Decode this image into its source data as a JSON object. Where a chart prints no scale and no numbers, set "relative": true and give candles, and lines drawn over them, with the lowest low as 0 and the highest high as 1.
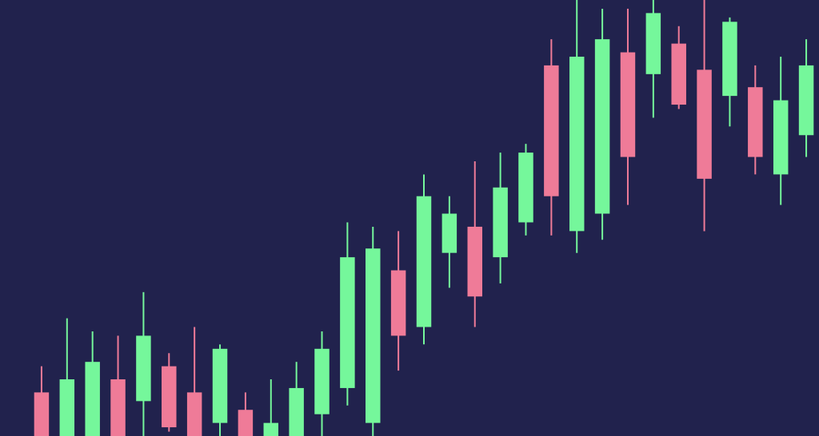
{
  "chart_data": {
    "type": "candlestick",
    "relative": true,
    "categories": [
      null,
      null,
      null,
      null,
      null,
      null,
      null,
      null,
      null,
      null,
      null,
      null,
      null,
      null,
      null,
      null,
      null,
      null,
      null,
      null,
      null,
      null,
      null,
      null,
      null,
      null,
      null,
      null,
      null,
      null,
      null
    ],
    "ohlc": [
      [
        0.1,
        0.16,
        0,
        0
      ],
      [
        0,
        0.27,
        0,
        0.13
      ],
      [
        0,
        0.24,
        0,
        0.17
      ],
      [
        0.13,
        0.23,
        0,
        0
      ],
      [
        0.08,
        0.33,
        0,
        0.23
      ],
      [
        0.16,
        0.19,
        0.01,
        0.02
      ],
      [
        0.1,
        0.25,
        0,
        0
      ],
      [
        0.03,
        0.21,
        0,
        0.2
      ],
      [
        0.06,
        0.1,
        0,
        0
      ],
      [
        0,
        0.13,
        0,
        0.03
      ],
      [
        0,
        0.17,
        0,
        0.11
      ],
      [
        0.05,
        0.24,
        0,
        0.2
      ],
      [
        0.11,
        0.49,
        0.07,
        0.41
      ],
      [
        0.03,
        0.48,
        0,
        0.43
      ],
      [
        0.38,
        0.47,
        0.15,
        0.23
      ],
      [
        0.25,
        0.6,
        0.21,
        0.55
      ],
      [
        0.42,
        0.55,
        0.34,
        0.51
      ],
      [
        0.48,
        0.63,
        0.25,
        0.32
      ],
      [
        0.41,
        0.65,
        0.35,
        0.57
      ],
      [
        0.49,
        0.67,
        0.46,
        0.65
      ],
      [
        0.85,
        0.91,
        0.46,
        0.55
      ],
      [
        0.47,
        1,
        0.42,
        0.87
      ],
      [
        0.51,
        0.98,
        0.45,
        0.91
      ],
      [
        0.88,
        0.98,
        0.53,
        0.64
      ],
      [
        0.83,
        1,
        0.73,
        0.97
      ],
      [
        0.9,
        0.94,
        0.75,
        0.76
      ],
      [
        0.84,
        1,
        0.47,
        0.59
      ],
      [
        0.78,
        0.96,
        0.71,
        0.95
      ],
      [
        0.8,
        0.85,
        0.6,
        0.64
      ],
      [
        0.6,
        0.87,
        0.53,
        0.77
      ],
      [
        0.69,
        0.91,
        0.64,
        0.85
      ]
    ],
    "colors": [
      "#ef7b98",
      "#75f79b",
      "#75f79b",
      "#ef7b98",
      "#75f79b",
      "#ef7b98",
      "#ef7b98",
      "#75f79b",
      "#ef7b98",
      "#75f79b",
      "#75f79b",
      "#75f79b",
      "#75f79b",
      "#75f79b",
      "#ef7b98",
      "#75f79b",
      "#75f79b",
      "#ef7b98",
      "#75f79b",
      "#75f79b",
      "#ef7b98",
      "#75f79b",
      "#75f79b",
      "#ef7b98",
      "#75f79b",
      "#ef7b98",
      "#ef7b98",
      "#75f79b",
      "#ef7b98",
      "#75f79b",
      "#75f79b"
    ]
  }
}
